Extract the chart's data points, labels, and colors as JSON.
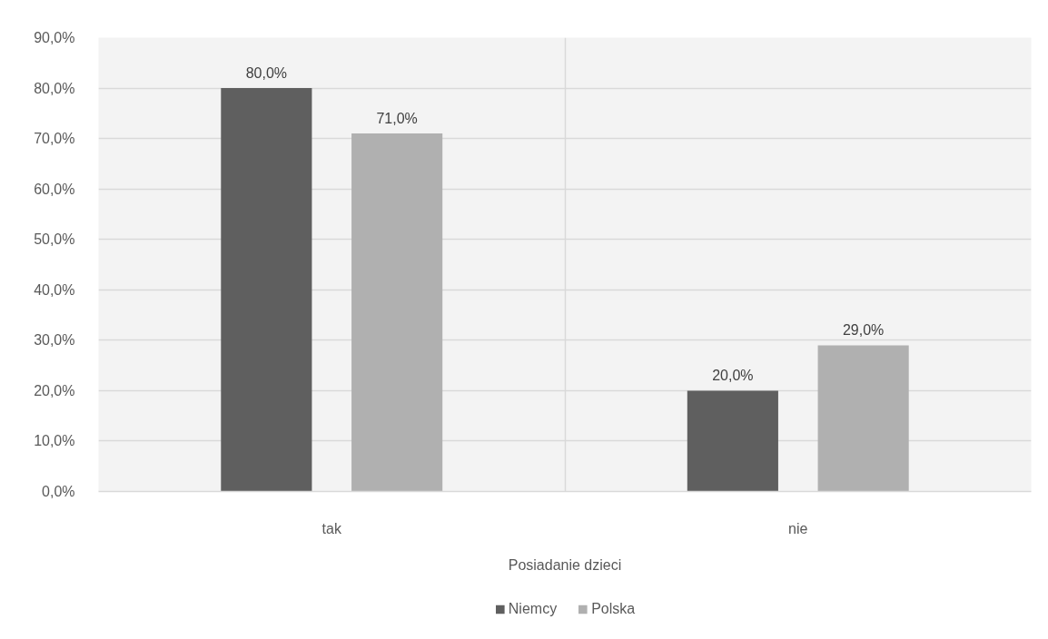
{
  "chart_data": {
    "type": "bar",
    "categories": [
      "tak",
      "nie"
    ],
    "xlabel": "Posiadanie dzieci",
    "series": [
      {
        "name": "Niemcy",
        "color": "#5f5f5f",
        "values": [
          80,
          20
        ],
        "value_labels": [
          "80,0%",
          "20,0%"
        ]
      },
      {
        "name": "Polska",
        "color": "#b0b0b0",
        "values": [
          71,
          29
        ],
        "value_labels": [
          "71,0%",
          "29,0%"
        ]
      }
    ],
    "ylim": [
      0,
      90
    ],
    "yticks": [
      {
        "value": 0,
        "label": "0,0%"
      },
      {
        "value": 10,
        "label": "10,0%"
      },
      {
        "value": 20,
        "label": "20,0%"
      },
      {
        "value": 30,
        "label": "30,0%"
      },
      {
        "value": 40,
        "label": "40,0%"
      },
      {
        "value": 50,
        "label": "50,0%"
      },
      {
        "value": 60,
        "label": "60,0%"
      },
      {
        "value": 70,
        "label": "70,0%"
      },
      {
        "value": 80,
        "label": "80,0%"
      },
      {
        "value": 90,
        "label": "90,0%"
      }
    ],
    "grid": true,
    "legend": "bottom"
  }
}
